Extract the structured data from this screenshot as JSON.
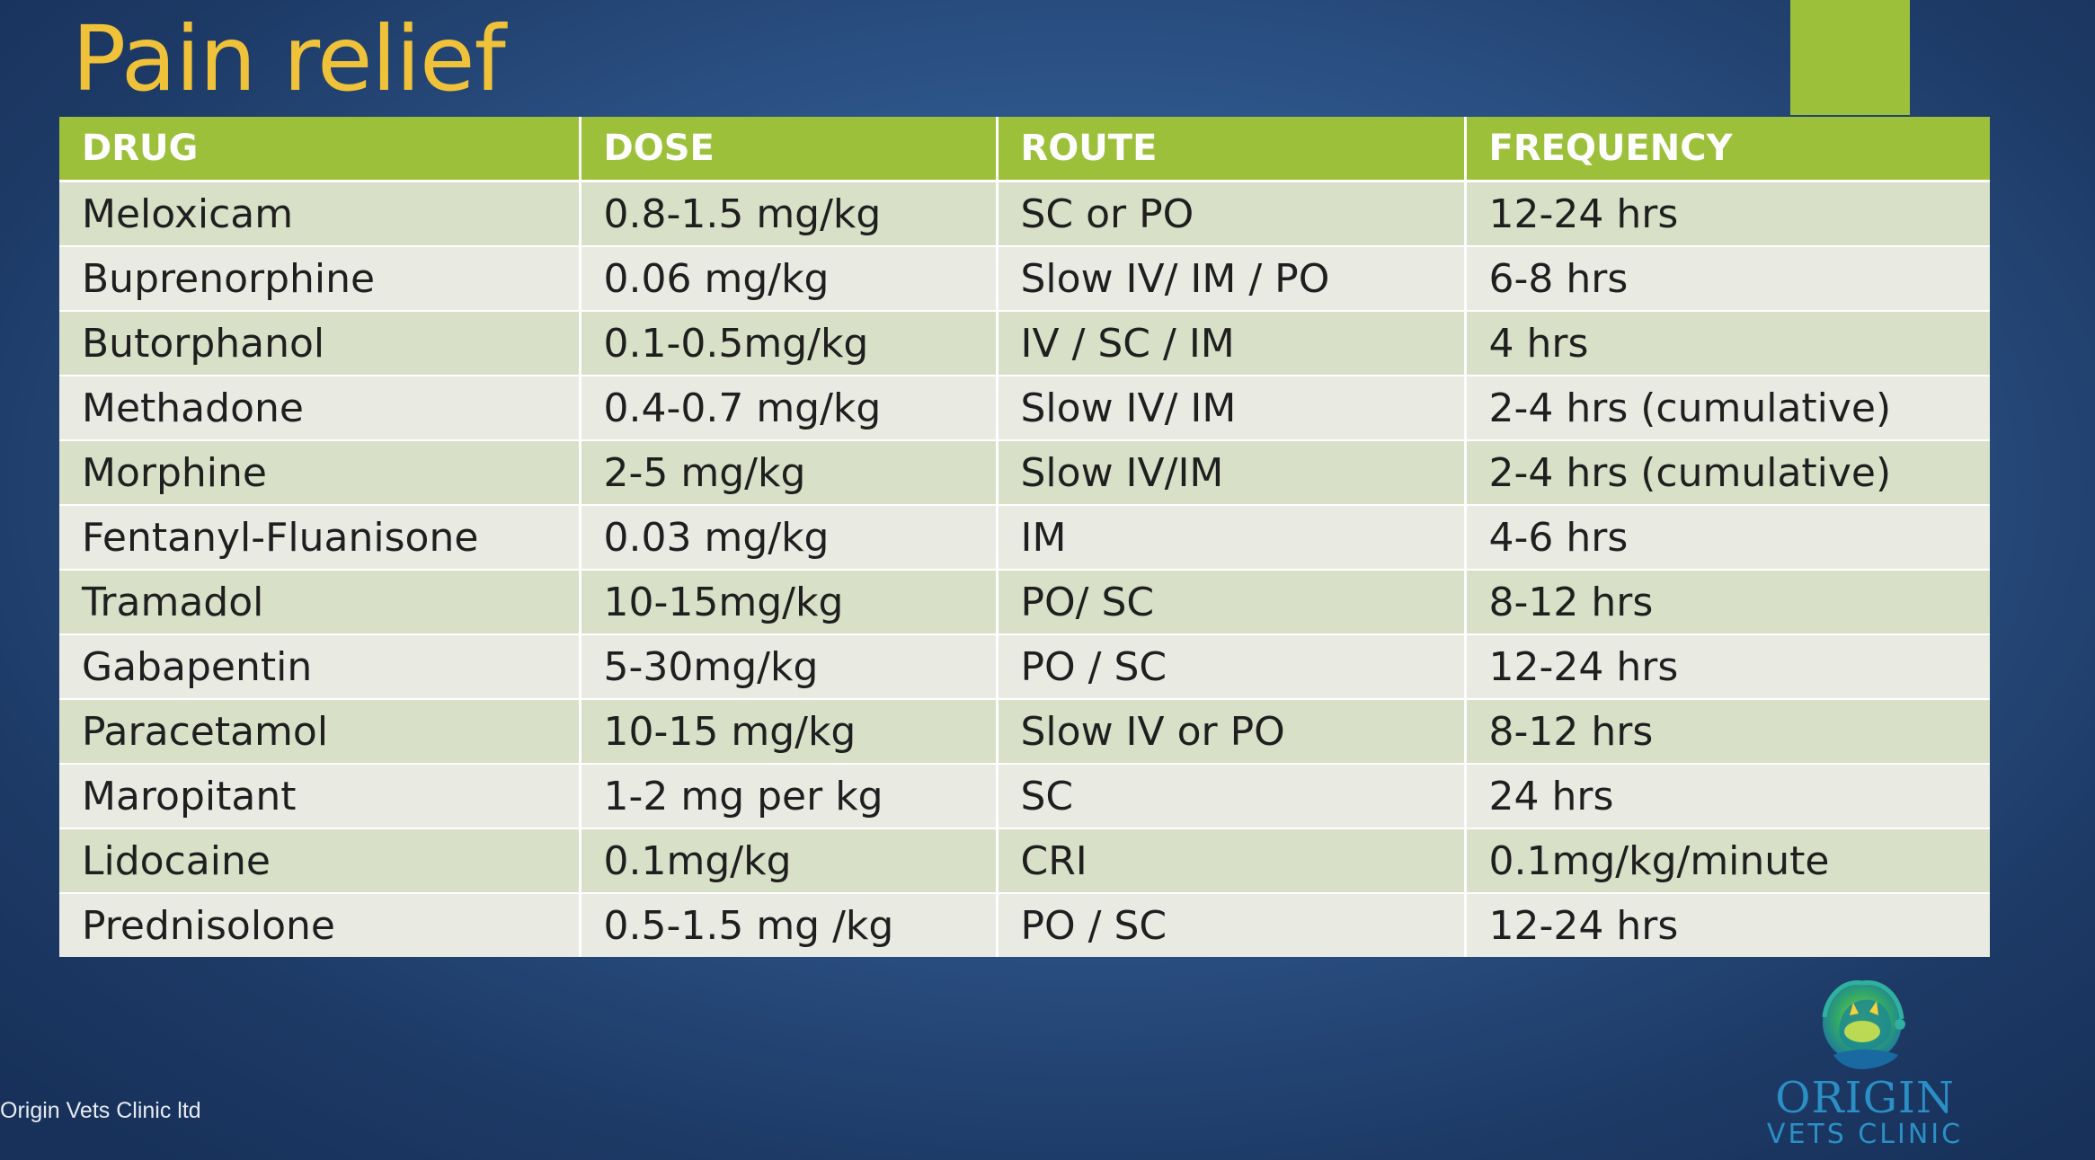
{
  "slide": {
    "title": "Pain relief",
    "copyright": "Origin Vets Clinic ltd"
  },
  "table": {
    "columns": [
      "DRUG",
      "DOSE",
      "ROUTE",
      "FREQUENCY"
    ],
    "rows": [
      [
        "Meloxicam",
        "0.8-1.5 mg/kg",
        "SC or PO",
        "12-24 hrs"
      ],
      [
        "Buprenorphine",
        "0.06 mg/kg",
        "Slow IV/ IM / PO",
        "6-8 hrs"
      ],
      [
        "Butorphanol",
        "0.1-0.5mg/kg",
        "IV / SC / IM",
        "4 hrs"
      ],
      [
        "Methadone",
        "0.4-0.7 mg/kg",
        "Slow IV/ IM",
        "2-4 hrs (cumulative)"
      ],
      [
        "Morphine",
        "2-5 mg/kg",
        "Slow IV/IM",
        "2-4 hrs (cumulative)"
      ],
      [
        "Fentanyl-Fluanisone",
        "0.03 mg/kg",
        "IM",
        "4-6 hrs"
      ],
      [
        "Tramadol",
        "10-15mg/kg",
        "PO/ SC",
        "8-12 hrs"
      ],
      [
        "Gabapentin",
        "5-30mg/kg",
        "PO / SC",
        "12-24 hrs"
      ],
      [
        "Paracetamol",
        "10-15 mg/kg",
        "Slow IV or PO",
        "8-12 hrs"
      ],
      [
        "Maropitant",
        "1-2 mg per kg",
        "SC",
        "24 hrs"
      ],
      [
        "Lidocaine",
        "0.1mg/kg",
        "CRI",
        "0.1mg/kg/minute"
      ],
      [
        "Prednisolone",
        "0.5-1.5 mg /kg",
        "PO / SC",
        "12-24 hrs"
      ]
    ]
  },
  "logo": {
    "name": "ORIGIN",
    "subtitle": "VETS CLINIC",
    "icon": "dog-and-cat-globe-icon"
  },
  "colors": {
    "title": "#f0c239",
    "header": "#9dc03b",
    "accent_bar": "#9dc03b",
    "row_odd": "#d8e0c7",
    "row_even": "#e9ebe3",
    "logo_text": "#2b8fc6"
  }
}
